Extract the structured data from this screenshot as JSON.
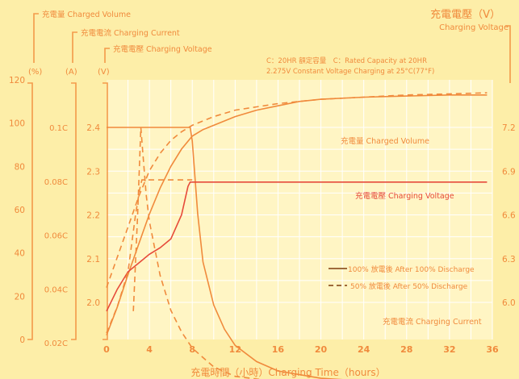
{
  "colors": {
    "background": "#fdeea8",
    "plot_bg": "#fff5c4",
    "grid": "#ffffff",
    "text": "#f08a3c",
    "axis_line": "#f39a4a",
    "series_orange": "#f08a3c",
    "series_red": "#e64a3a"
  },
  "header": {
    "volume_label": "充電量 Charged Volume",
    "current_label": "充電電流 Charging Current",
    "voltage_label": "充電電壓 Charging Voltage",
    "unit_percent": "(%)",
    "unit_amp": "(A)",
    "unit_volt": "(V)",
    "right_title": "充電電壓（V）",
    "right_subtitle": "Charging Voltage"
  },
  "note": {
    "line1": "C：20HR 額定容量　C：Rated Capacity at 20HR",
    "line2": "2.275V Constant Voltage Charging at 25°C(77°F)"
  },
  "xlabel": "充電時間（小時）Charging Time（hours）",
  "chart_data": {
    "type": "line",
    "xlim": [
      0,
      36
    ],
    "x_ticks": [
      "0",
      "4",
      "8",
      "12",
      "16",
      "20",
      "24",
      "28",
      "32",
      "36"
    ],
    "axes": {
      "percent": {
        "ticks": [
          "0",
          "20",
          "40",
          "60",
          "80",
          "100",
          "120"
        ],
        "range": [
          0,
          120
        ]
      },
      "current": {
        "ticks": [
          "0.02C",
          "0.04C",
          "0.06C",
          "0.08C",
          "0.1C"
        ],
        "values": [
          0.02,
          0.04,
          0.06,
          0.08,
          0.1
        ]
      },
      "voltage": {
        "ticks": [
          "2.0",
          "2.1",
          "2.2",
          "2.3",
          "2.4"
        ],
        "range": [
          1.9,
          2.5
        ]
      },
      "voltage_right": {
        "ticks": [
          "6.0",
          "6.3",
          "6.6",
          "6.9",
          "7.2"
        ],
        "values": [
          6.0,
          6.3,
          6.6,
          6.9,
          7.2
        ]
      }
    },
    "series_labels": {
      "volume": "充電量 Charged Volume",
      "voltage": "充電電壓 Charging Voltage",
      "current": "充電電流 Charging Current"
    },
    "legend": {
      "solid": "100% 放電後 After 100% Discharge",
      "dashed": "50% 放電後 After 50% Discharge"
    },
    "series": [
      {
        "key": "volume_100",
        "axis": "percent",
        "style": "solid",
        "color": "orange",
        "points": [
          [
            0,
            2
          ],
          [
            1,
            15
          ],
          [
            2,
            30
          ],
          [
            3,
            44
          ],
          [
            4,
            58
          ],
          [
            5,
            70
          ],
          [
            6,
            80
          ],
          [
            7,
            88
          ],
          [
            8,
            94
          ],
          [
            9,
            97
          ],
          [
            10,
            99
          ],
          [
            12,
            103
          ],
          [
            14,
            106
          ],
          [
            16,
            108
          ],
          [
            18,
            110
          ],
          [
            20,
            111
          ],
          [
            24,
            112
          ],
          [
            28,
            112.5
          ],
          [
            32,
            113
          ],
          [
            35.5,
            113
          ]
        ]
      },
      {
        "key": "volume_50",
        "axis": "percent",
        "style": "dashed",
        "color": "orange",
        "points": [
          [
            0,
            24
          ],
          [
            1,
            38
          ],
          [
            2,
            52
          ],
          [
            3,
            66
          ],
          [
            4,
            78
          ],
          [
            5,
            86
          ],
          [
            6,
            92
          ],
          [
            7,
            96
          ],
          [
            8,
            99
          ],
          [
            10,
            103
          ],
          [
            12,
            106
          ],
          [
            16,
            109
          ],
          [
            20,
            111
          ],
          [
            24,
            112
          ],
          [
            28,
            113
          ],
          [
            32,
            113.5
          ],
          [
            35.5,
            114
          ]
        ]
      },
      {
        "key": "current_100",
        "axis": "current",
        "style": "solid",
        "color": "orange",
        "points": [
          [
            0,
            0.1
          ],
          [
            7.8,
            0.1
          ],
          [
            8,
            0.095
          ],
          [
            8.5,
            0.068
          ],
          [
            9,
            0.05
          ],
          [
            10,
            0.034
          ],
          [
            11,
            0.025
          ],
          [
            12,
            0.019
          ],
          [
            14,
            0.013
          ],
          [
            16,
            0.0095
          ],
          [
            20,
            0.0068
          ],
          [
            24,
            0.0058
          ],
          [
            28,
            0.0055
          ],
          [
            35.5,
            0.0055
          ]
        ]
      },
      {
        "key": "current_50",
        "axis": "current",
        "style": "dashed",
        "color": "orange",
        "points": [
          [
            3.2,
            0.1
          ],
          [
            3.4,
            0.09
          ],
          [
            3.7,
            0.075
          ],
          [
            4,
            0.065
          ],
          [
            5,
            0.045
          ],
          [
            6,
            0.032
          ],
          [
            7,
            0.024
          ],
          [
            8,
            0.018
          ],
          [
            10,
            0.011
          ],
          [
            12,
            0.0075
          ],
          [
            16,
            0.0055
          ],
          [
            24,
            0.005
          ],
          [
            35.5,
            0.005
          ]
        ]
      },
      {
        "key": "voltage_100",
        "axis": "voltage",
        "style": "solid",
        "color": "red",
        "points": [
          [
            0,
            1.98
          ],
          [
            1,
            2.03
          ],
          [
            2,
            2.07
          ],
          [
            3,
            2.09
          ],
          [
            4,
            2.11
          ],
          [
            5,
            2.125
          ],
          [
            6,
            2.145
          ],
          [
            7,
            2.2
          ],
          [
            7.6,
            2.265
          ],
          [
            7.8,
            2.275
          ],
          [
            35.5,
            2.275
          ]
        ]
      },
      {
        "key": "voltage_50",
        "axis": "voltage",
        "style": "dashed",
        "color": "orange",
        "points": [
          [
            0,
            1.93
          ],
          [
            1,
            1.99
          ],
          [
            2,
            2.07
          ],
          [
            2.7,
            2.2
          ],
          [
            3.1,
            2.26
          ],
          [
            3.3,
            2.28
          ],
          [
            8,
            2.28
          ]
        ]
      },
      {
        "key": "voltage_50_drop",
        "axis": "voltage",
        "style": "dashed",
        "color": "orange",
        "points": [
          [
            2.5,
            1.98
          ],
          [
            2.9,
            2.2
          ],
          [
            3.2,
            2.4
          ]
        ]
      }
    ]
  }
}
